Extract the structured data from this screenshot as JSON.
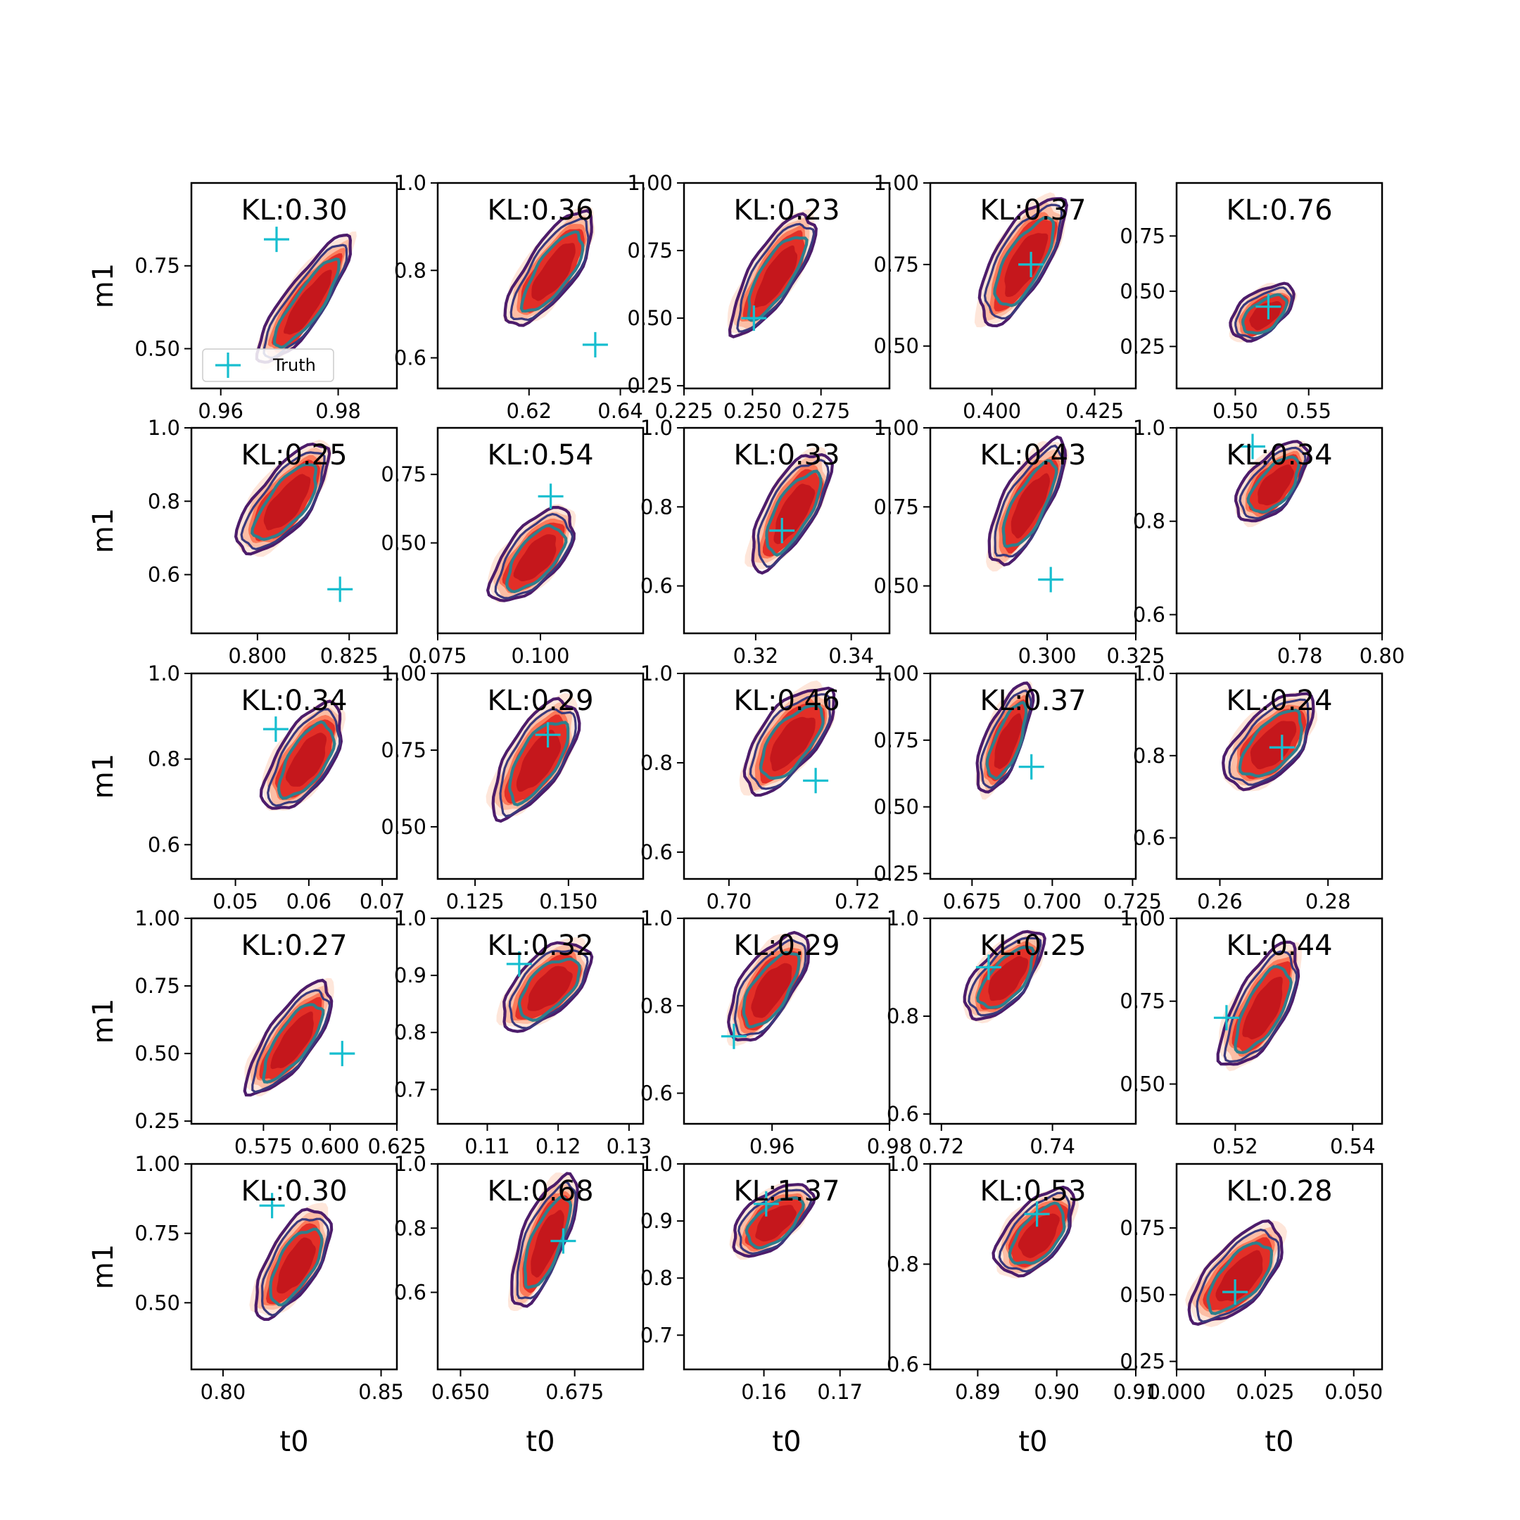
{
  "figure": {
    "legend_label": "Truth",
    "colors": {
      "kde_fill": [
        "#fee6da",
        "#fcbea5",
        "#fb7a5a",
        "#e32f27",
        "#c5171c"
      ],
      "contour_outer": "#4c1c6b",
      "contour_mid": "#3a3a7d",
      "contour_inner": "#2f7f8c",
      "truth_marker": "#17becf"
    }
  },
  "chart_data": [
    {
      "type": "contour",
      "row": 0,
      "col": 0,
      "title": "KL:0.30",
      "ylabel": "m1",
      "xlabel": "",
      "xlim": [
        0.955,
        0.99
      ],
      "ylim": [
        0.38,
        1.0
      ],
      "xticks": [
        "0.96",
        "0.98"
      ],
      "xtick_values": [
        0.96,
        0.98
      ],
      "yticks": [
        "0.50",
        "0.75"
      ],
      "ytick_values": [
        0.5,
        0.75
      ],
      "truth": [
        0.9695,
        0.83
      ],
      "center": [
        0.9745,
        0.64
      ],
      "spread": [
        0.0045,
        0.18
      ],
      "tilt": -55,
      "legend": "lower-left"
    },
    {
      "type": "contour",
      "row": 0,
      "col": 1,
      "title": "KL:0.36",
      "ylabel": "",
      "xlabel": "",
      "xlim": [
        0.6,
        0.645
      ],
      "ylim": [
        0.53,
        1.0
      ],
      "xticks": [
        "0.62",
        "0.64"
      ],
      "xtick_values": [
        0.62,
        0.64
      ],
      "yticks": [
        "0.6",
        "0.8",
        "1.0"
      ],
      "ytick_values": [
        0.6,
        0.8,
        1.0
      ],
      "truth": [
        0.6345,
        0.63
      ],
      "center": [
        0.625,
        0.8
      ],
      "spread": [
        0.007,
        0.12
      ],
      "tilt": -55
    },
    {
      "type": "contour",
      "row": 0,
      "col": 2,
      "title": "KL:0.23",
      "ylabel": "",
      "xlabel": "",
      "xlim": [
        0.225,
        0.3
      ],
      "ylim": [
        0.24,
        1.0
      ],
      "xticks": [
        "0.225",
        "0.250",
        "0.275"
      ],
      "xtick_values": [
        0.225,
        0.25,
        0.275
      ],
      "yticks": [
        "0.25",
        "0.50",
        "0.75",
        "1.00"
      ],
      "ytick_values": [
        0.25,
        0.5,
        0.75,
        1.0
      ],
      "truth": [
        0.2505,
        0.5
      ],
      "center": [
        0.258,
        0.66
      ],
      "spread": [
        0.011,
        0.2
      ],
      "tilt": -58
    },
    {
      "type": "contour",
      "row": 0,
      "col": 3,
      "title": "KL:0.37",
      "ylabel": "",
      "xlabel": "",
      "xlim": [
        0.385,
        0.435
      ],
      "ylim": [
        0.37,
        1.0
      ],
      "xticks": [
        "0.400",
        "0.425"
      ],
      "xtick_values": [
        0.4,
        0.425
      ],
      "yticks": [
        "0.50",
        "0.75",
        "1.00"
      ],
      "ytick_values": [
        0.5,
        0.75,
        1.0
      ],
      "truth": [
        0.4095,
        0.75
      ],
      "center": [
        0.4075,
        0.76
      ],
      "spread": [
        0.0085,
        0.17
      ],
      "tilt": -60
    },
    {
      "type": "contour",
      "row": 0,
      "col": 4,
      "title": "KL:0.76",
      "ylabel": "",
      "xlabel": "",
      "xlim": [
        0.46,
        0.6
      ],
      "ylim": [
        0.06,
        0.99
      ],
      "xticks": [
        "0.50",
        "0.55"
      ],
      "xtick_values": [
        0.5,
        0.55
      ],
      "yticks": [
        "0.25",
        "0.50",
        "0.75"
      ],
      "ytick_values": [
        0.25,
        0.5,
        0.75
      ],
      "truth": [
        0.5225,
        0.43
      ],
      "center": [
        0.519,
        0.4
      ],
      "spread": [
        0.018,
        0.13
      ],
      "tilt": -38
    },
    {
      "type": "contour",
      "row": 1,
      "col": 0,
      "title": "KL:0.25",
      "ylabel": "m1",
      "xlabel": "",
      "xlim": [
        0.782,
        0.838
      ],
      "ylim": [
        0.44,
        1.0
      ],
      "xticks": [
        "0.800",
        "0.825"
      ],
      "xtick_values": [
        0.8,
        0.825
      ],
      "yticks": [
        "0.6",
        "0.8",
        "1.0"
      ],
      "ytick_values": [
        0.6,
        0.8,
        1.0
      ],
      "truth": [
        0.8225,
        0.56
      ],
      "center": [
        0.8075,
        0.8
      ],
      "spread": [
        0.0095,
        0.14
      ],
      "tilt": -52
    },
    {
      "type": "contour",
      "row": 1,
      "col": 1,
      "title": "KL:0.54",
      "ylabel": "",
      "xlabel": "",
      "xlim": [
        0.075,
        0.125
      ],
      "ylim": [
        0.17,
        0.92
      ],
      "xticks": [
        "0.075",
        "0.100"
      ],
      "xtick_values": [
        0.075,
        0.1
      ],
      "yticks": [
        "0.50",
        "0.75"
      ],
      "ytick_values": [
        0.5,
        0.75
      ],
      "truth": [
        0.1025,
        0.67
      ],
      "center": [
        0.0985,
        0.45
      ],
      "spread": [
        0.0085,
        0.16
      ],
      "tilt": -50
    },
    {
      "type": "contour",
      "row": 1,
      "col": 2,
      "title": "KL:0.33",
      "ylabel": "",
      "xlabel": "",
      "xlim": [
        0.305,
        0.348
      ],
      "ylim": [
        0.48,
        1.0
      ],
      "xticks": [
        "0.32",
        "0.34"
      ],
      "xtick_values": [
        0.32,
        0.34
      ],
      "yticks": [
        "0.6",
        "0.8",
        "1.0"
      ],
      "ytick_values": [
        0.6,
        0.8,
        1.0
      ],
      "truth": [
        0.3255,
        0.74
      ],
      "center": [
        0.3275,
        0.79
      ],
      "spread": [
        0.0068,
        0.13
      ],
      "tilt": -60
    },
    {
      "type": "contour",
      "row": 1,
      "col": 3,
      "title": "KL:0.43",
      "ylabel": "",
      "xlabel": "",
      "xlim": [
        0.267,
        0.325
      ],
      "ylim": [
        0.35,
        1.0
      ],
      "xticks": [
        "0.300",
        "0.325"
      ],
      "xtick_values": [
        0.3,
        0.325
      ],
      "yticks": [
        "0.50",
        "0.75",
        "1.00"
      ],
      "ytick_values": [
        0.5,
        0.75,
        1.0
      ],
      "truth": [
        0.301,
        0.52
      ],
      "center": [
        0.2945,
        0.76
      ],
      "spread": [
        0.0085,
        0.17
      ],
      "tilt": -62
    },
    {
      "type": "contour",
      "row": 1,
      "col": 4,
      "title": "KL:0.34",
      "ylabel": "",
      "xlabel": "",
      "xlim": [
        0.75,
        0.8
      ],
      "ylim": [
        0.56,
        1.0
      ],
      "xticks": [
        "0.78",
        "0.80"
      ],
      "xtick_values": [
        0.78,
        0.8
      ],
      "yticks": [
        "0.6",
        "0.8",
        "1.0"
      ],
      "ytick_values": [
        0.6,
        0.8,
        1.0
      ],
      "truth": [
        0.7685,
        0.96
      ],
      "center": [
        0.7735,
        0.88
      ],
      "spread": [
        0.0075,
        0.08
      ],
      "tilt": -50
    },
    {
      "type": "contour",
      "row": 2,
      "col": 0,
      "title": "KL:0.34",
      "ylabel": "m1",
      "xlabel": "",
      "xlim": [
        0.044,
        0.072
      ],
      "ylim": [
        0.52,
        1.0
      ],
      "xticks": [
        "0.05",
        "0.06",
        "0.07"
      ],
      "xtick_values": [
        0.05,
        0.06,
        0.07
      ],
      "yticks": [
        "0.6",
        "0.8",
        "1.0"
      ],
      "ytick_values": [
        0.6,
        0.8,
        1.0
      ],
      "truth": [
        0.0555,
        0.87
      ],
      "center": [
        0.0595,
        0.8
      ],
      "spread": [
        0.0048,
        0.11
      ],
      "tilt": -58
    },
    {
      "type": "contour",
      "row": 2,
      "col": 1,
      "title": "KL:0.29",
      "ylabel": "",
      "xlabel": "",
      "xlim": [
        0.115,
        0.17
      ],
      "ylim": [
        0.33,
        1.0
      ],
      "xticks": [
        "0.125",
        "0.150"
      ],
      "xtick_values": [
        0.125,
        0.15
      ],
      "yticks": [
        "0.50",
        "0.75",
        "1.00"
      ],
      "ytick_values": [
        0.5,
        0.75,
        1.0
      ],
      "truth": [
        0.1445,
        0.8
      ],
      "center": [
        0.1415,
        0.72
      ],
      "spread": [
        0.0098,
        0.17
      ],
      "tilt": -58
    },
    {
      "type": "contour",
      "row": 2,
      "col": 2,
      "title": "KL:0.46",
      "ylabel": "",
      "xlabel": "",
      "xlim": [
        0.693,
        0.725
      ],
      "ylim": [
        0.54,
        1.0
      ],
      "xticks": [
        "0.70",
        "0.72"
      ],
      "xtick_values": [
        0.7,
        0.72
      ],
      "yticks": [
        "0.6",
        "0.8",
        "1.0"
      ],
      "ytick_values": [
        0.6,
        0.8,
        1.0
      ],
      "truth": [
        0.7135,
        0.76
      ],
      "center": [
        0.7095,
        0.85
      ],
      "spread": [
        0.0058,
        0.11
      ],
      "tilt": -52
    },
    {
      "type": "contour",
      "row": 2,
      "col": 3,
      "title": "KL:0.37",
      "ylabel": "",
      "xlabel": "",
      "xlim": [
        0.662,
        0.726
      ],
      "ylim": [
        0.23,
        1.0
      ],
      "xticks": [
        "0.675",
        "0.700",
        "0.725"
      ],
      "xtick_values": [
        0.675,
        0.7,
        0.725
      ],
      "yticks": [
        "0.25",
        "0.50",
        "0.75",
        "1.00"
      ],
      "ytick_values": [
        0.25,
        0.5,
        0.75,
        1.0
      ],
      "truth": [
        0.6935,
        0.65
      ],
      "center": [
        0.6855,
        0.75
      ],
      "spread": [
        0.0075,
        0.17
      ],
      "tilt": -68
    },
    {
      "type": "contour",
      "row": 2,
      "col": 4,
      "title": "KL:0.24",
      "ylabel": "",
      "xlabel": "",
      "xlim": [
        0.252,
        0.29
      ],
      "ylim": [
        0.5,
        1.0
      ],
      "xticks": [
        "0.26",
        "0.28"
      ],
      "xtick_values": [
        0.26,
        0.28
      ],
      "yticks": [
        "0.6",
        "0.8",
        "1.0"
      ],
      "ytick_values": [
        0.6,
        0.8,
        1.0
      ],
      "truth": [
        0.2715,
        0.82
      ],
      "center": [
        0.2695,
        0.83
      ],
      "spread": [
        0.0072,
        0.11
      ],
      "tilt": -48
    },
    {
      "type": "contour",
      "row": 3,
      "col": 0,
      "title": "KL:0.27",
      "ylabel": "m1",
      "xlabel": "",
      "xlim": [
        0.548,
        0.625
      ],
      "ylim": [
        0.24,
        1.0
      ],
      "xticks": [
        "0.575",
        "0.600",
        "0.625"
      ],
      "xtick_values": [
        0.575,
        0.6,
        0.625
      ],
      "yticks": [
        "0.25",
        "0.50",
        "0.75",
        "1.00"
      ],
      "ytick_values": [
        0.25,
        0.5,
        0.75,
        1.0
      ],
      "truth": [
        0.6045,
        0.5
      ],
      "center": [
        0.5855,
        0.55
      ],
      "spread": [
        0.0115,
        0.19
      ],
      "tilt": -55
    },
    {
      "type": "contour",
      "row": 3,
      "col": 1,
      "title": "KL:0.32",
      "ylabel": "",
      "xlabel": "",
      "xlim": [
        0.103,
        0.132
      ],
      "ylim": [
        0.64,
        1.0
      ],
      "xticks": [
        "0.11",
        "0.12",
        "0.13"
      ],
      "xtick_values": [
        0.11,
        0.12,
        0.13
      ],
      "yticks": [
        "0.7",
        "0.8",
        "0.9",
        "1.0"
      ],
      "ytick_values": [
        0.7,
        0.8,
        0.9,
        1.0
      ],
      "truth": [
        0.1145,
        0.92
      ],
      "center": [
        0.1185,
        0.88
      ],
      "spread": [
        0.0052,
        0.075
      ],
      "tilt": -45
    },
    {
      "type": "contour",
      "row": 3,
      "col": 2,
      "title": "KL:0.29",
      "ylabel": "",
      "xlabel": "",
      "xlim": [
        0.945,
        0.98
      ],
      "ylim": [
        0.53,
        1.0
      ],
      "xticks": [
        "0.96",
        "0.98"
      ],
      "xtick_values": [
        0.96,
        0.98
      ],
      "yticks": [
        "0.6",
        "0.8",
        "1.0"
      ],
      "ytick_values": [
        0.6,
        0.8,
        1.0
      ],
      "truth": [
        0.9535,
        0.73
      ],
      "center": [
        0.9595,
        0.84
      ],
      "spread": [
        0.0058,
        0.11
      ],
      "tilt": -57
    },
    {
      "type": "contour",
      "row": 3,
      "col": 3,
      "title": "KL:0.25",
      "ylabel": "",
      "xlabel": "",
      "xlim": [
        0.718,
        0.755
      ],
      "ylim": [
        0.58,
        1.0
      ],
      "xticks": [
        "0.72",
        "0.74"
      ],
      "xtick_values": [
        0.72,
        0.74
      ],
      "yticks": [
        "0.6",
        "0.8",
        "1.0"
      ],
      "ytick_values": [
        0.6,
        0.8,
        1.0
      ],
      "truth": [
        0.7285,
        0.9
      ],
      "center": [
        0.7315,
        0.88
      ],
      "spread": [
        0.0058,
        0.085
      ],
      "tilt": -50
    },
    {
      "type": "contour",
      "row": 3,
      "col": 4,
      "title": "KL:0.44",
      "ylabel": "",
      "xlabel": "",
      "xlim": [
        0.51,
        0.545
      ],
      "ylim": [
        0.38,
        1.0
      ],
      "xticks": [
        "0.52",
        "0.54"
      ],
      "xtick_values": [
        0.52,
        0.54
      ],
      "yticks": [
        "0.50",
        "0.75",
        "1.00"
      ],
      "ytick_values": [
        0.5,
        0.75,
        1.0
      ],
      "truth": [
        0.5185,
        0.7
      ],
      "center": [
        0.5245,
        0.73
      ],
      "spread": [
        0.0058,
        0.16
      ],
      "tilt": -62
    },
    {
      "type": "contour",
      "row": 4,
      "col": 0,
      "title": "KL:0.30",
      "ylabel": "m1",
      "xlabel": "t0",
      "xlim": [
        0.79,
        0.855
      ],
      "ylim": [
        0.26,
        1.0
      ],
      "xticks": [
        "0.80",
        "0.85"
      ],
      "xtick_values": [
        0.8,
        0.85
      ],
      "yticks": [
        "0.50",
        "0.75",
        "1.00"
      ],
      "ytick_values": [
        0.5,
        0.75,
        1.0
      ],
      "truth": [
        0.8155,
        0.85
      ],
      "center": [
        0.8225,
        0.64
      ],
      "spread": [
        0.0105,
        0.17
      ],
      "tilt": -60
    },
    {
      "type": "contour",
      "row": 4,
      "col": 1,
      "title": "KL:0.68",
      "ylabel": "",
      "xlabel": "t0",
      "xlim": [
        0.645,
        0.69
      ],
      "ylim": [
        0.36,
        1.0
      ],
      "xticks": [
        "0.650",
        "0.675"
      ],
      "xtick_values": [
        0.65,
        0.675
      ],
      "yticks": [
        "0.6",
        "0.8",
        "1.0"
      ],
      "ytick_values": [
        0.6,
        0.8,
        1.0
      ],
      "truth": [
        0.6725,
        0.76
      ],
      "center": [
        0.6685,
        0.76
      ],
      "spread": [
        0.0062,
        0.17
      ],
      "tilt": -68
    },
    {
      "type": "contour",
      "row": 4,
      "col": 2,
      "title": "KL:1.37",
      "ylabel": "",
      "xlabel": "t0",
      "xlim": [
        0.1495,
        0.1765
      ],
      "ylim": [
        0.64,
        1.0
      ],
      "xticks": [
        "0.16",
        "0.17"
      ],
      "xtick_values": [
        0.16,
        0.17
      ],
      "yticks": [
        "0.7",
        "0.8",
        "0.9",
        "1.0"
      ],
      "ytick_values": [
        0.7,
        0.8,
        0.9,
        1.0
      ],
      "truth": [
        0.1603,
        0.93
      ],
      "center": [
        0.1612,
        0.9
      ],
      "spread": [
        0.0042,
        0.065
      ],
      "tilt": -40
    },
    {
      "type": "contour",
      "row": 4,
      "col": 3,
      "title": "KL:0.53",
      "ylabel": "",
      "xlabel": "t0",
      "xlim": [
        0.884,
        0.91
      ],
      "ylim": [
        0.59,
        1.0
      ],
      "xticks": [
        "0.89",
        "0.90",
        "0.91"
      ],
      "xtick_values": [
        0.89,
        0.9,
        0.91
      ],
      "yticks": [
        "0.6",
        "0.8",
        "1.0"
      ],
      "ytick_values": [
        0.6,
        0.8,
        1.0
      ],
      "truth": [
        0.8975,
        0.9
      ],
      "center": [
        0.8975,
        0.86
      ],
      "spread": [
        0.0045,
        0.08
      ],
      "tilt": -50
    },
    {
      "type": "contour",
      "row": 4,
      "col": 4,
      "title": "KL:0.28",
      "ylabel": "",
      "xlabel": "t0",
      "xlim": [
        0.0,
        0.058
      ],
      "ylim": [
        0.22,
        0.99
      ],
      "xticks": [
        "0.000",
        "0.025",
        "0.050"
      ],
      "xtick_values": [
        0.0,
        0.025,
        0.05
      ],
      "yticks": [
        "0.25",
        "0.50",
        "0.75"
      ],
      "ytick_values": [
        0.25,
        0.5,
        0.75
      ],
      "truth": [
        0.0165,
        0.51
      ],
      "center": [
        0.0175,
        0.57
      ],
      "spread": [
        0.0105,
        0.18
      ],
      "tilt": -48
    }
  ]
}
